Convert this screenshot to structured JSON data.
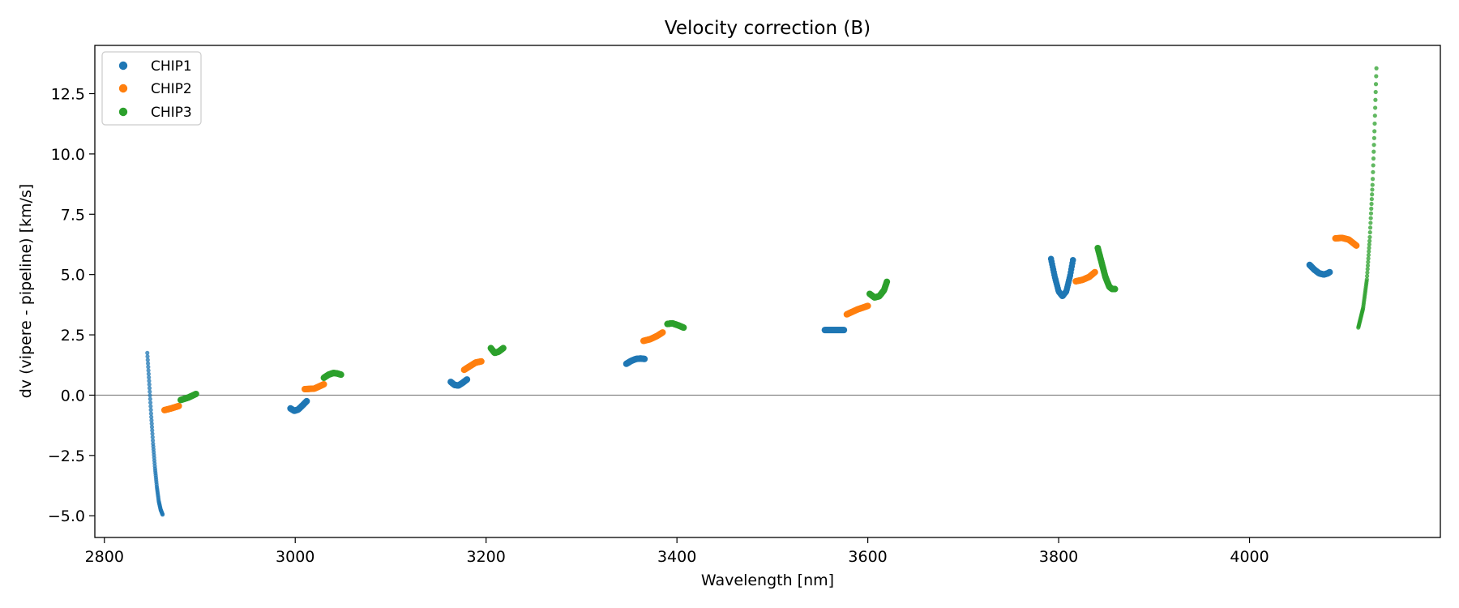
{
  "chart_data": {
    "type": "scatter",
    "title": "Velocity correction (B)",
    "xlabel": "Wavelength [nm]",
    "ylabel": "dv (vipere - pipeline) [km/s]",
    "xlim": [
      2790,
      4200
    ],
    "ylim": [
      -5.9,
      14.5
    ],
    "xticks": [
      2800,
      3000,
      3200,
      3400,
      3600,
      3800,
      4000
    ],
    "xtick_labels": [
      "2800",
      "3000",
      "3200",
      "3400",
      "3600",
      "3800",
      "4000"
    ],
    "yticks": [
      -5.0,
      -2.5,
      0.0,
      2.5,
      5.0,
      7.5,
      10.0,
      12.5
    ],
    "ytick_labels": [
      "−5.0",
      "−2.5",
      "0.0",
      "2.5",
      "5.0",
      "7.5",
      "10.0",
      "12.5"
    ],
    "hline_y": 0,
    "legend_position": "top-left",
    "series": [
      {
        "name": "CHIP1",
        "color": "#1f77b4",
        "segments": [
          {
            "x_start": 2845,
            "x_end": 2861,
            "points": [
              [
                2845,
                1.75
              ],
              [
                2847,
                0.5
              ],
              [
                2849,
                -0.8
              ],
              [
                2851,
                -2.0
              ],
              [
                2853,
                -3.0
              ],
              [
                2855,
                -3.8
              ],
              [
                2857,
                -4.4
              ],
              [
                2859,
                -4.75
              ],
              [
                2861,
                -4.95
              ]
            ],
            "n": 70,
            "size": 2.6
          },
          {
            "x_start": 2995,
            "x_end": 3012,
            "points": [
              [
                2995,
                -0.55
              ],
              [
                2999,
                -0.65
              ],
              [
                3003,
                -0.6
              ],
              [
                3007,
                -0.45
              ],
              [
                3012,
                -0.25
              ]
            ],
            "n": 30,
            "size": 4.0
          },
          {
            "x_start": 3163,
            "x_end": 3180,
            "points": [
              [
                3163,
                0.55
              ],
              [
                3167,
                0.42
              ],
              [
                3171,
                0.4
              ],
              [
                3175,
                0.5
              ],
              [
                3180,
                0.65
              ]
            ],
            "n": 30,
            "size": 4.0
          },
          {
            "x_start": 3347,
            "x_end": 3366,
            "points": [
              [
                3347,
                1.3
              ],
              [
                3352,
                1.42
              ],
              [
                3357,
                1.5
              ],
              [
                3362,
                1.52
              ],
              [
                3366,
                1.5
              ]
            ],
            "n": 30,
            "size": 4.0
          },
          {
            "x_start": 3555,
            "x_end": 3575,
            "points": [
              [
                3555,
                2.7
              ],
              [
                3575,
                2.7
              ]
            ],
            "n": 30,
            "size": 4.0
          },
          {
            "x_start": 3792,
            "x_end": 3815,
            "points": [
              [
                3792,
                5.65
              ],
              [
                3796,
                4.9
              ],
              [
                3800,
                4.3
              ],
              [
                3804,
                4.1
              ],
              [
                3808,
                4.3
              ],
              [
                3812,
                4.95
              ],
              [
                3815,
                5.6
              ]
            ],
            "n": 40,
            "size": 3.8
          },
          {
            "x_start": 4063,
            "x_end": 4084,
            "points": [
              [
                4063,
                5.4
              ],
              [
                4068,
                5.2
              ],
              [
                4073,
                5.05
              ],
              [
                4078,
                5.0
              ],
              [
                4082,
                5.05
              ],
              [
                4084,
                5.1
              ]
            ],
            "n": 30,
            "size": 4.0
          }
        ]
      },
      {
        "name": "CHIP2",
        "color": "#ff7f0e",
        "segments": [
          {
            "x_start": 2863,
            "x_end": 2878,
            "points": [
              [
                2863,
                -0.62
              ],
              [
                2870,
                -0.55
              ],
              [
                2878,
                -0.45
              ]
            ],
            "n": 25,
            "size": 4.0
          },
          {
            "x_start": 3010,
            "x_end": 3030,
            "points": [
              [
                3010,
                0.25
              ],
              [
                3020,
                0.27
              ],
              [
                3030,
                0.45
              ]
            ],
            "n": 30,
            "size": 4.0
          },
          {
            "x_start": 3177,
            "x_end": 3195,
            "points": [
              [
                3177,
                1.05
              ],
              [
                3183,
                1.2
              ],
              [
                3189,
                1.35
              ],
              [
                3195,
                1.4
              ]
            ],
            "n": 30,
            "size": 4.0
          },
          {
            "x_start": 3365,
            "x_end": 3385,
            "points": [
              [
                3365,
                2.25
              ],
              [
                3372,
                2.32
              ],
              [
                3379,
                2.45
              ],
              [
                3385,
                2.6
              ]
            ],
            "n": 30,
            "size": 4.0
          },
          {
            "x_start": 3578,
            "x_end": 3600,
            "points": [
              [
                3578,
                3.35
              ],
              [
                3589,
                3.55
              ],
              [
                3600,
                3.7
              ]
            ],
            "n": 30,
            "size": 4.0
          },
          {
            "x_start": 3818,
            "x_end": 3838,
            "points": [
              [
                3818,
                4.72
              ],
              [
                3825,
                4.78
              ],
              [
                3832,
                4.9
              ],
              [
                3838,
                5.1
              ]
            ],
            "n": 30,
            "size": 4.0
          },
          {
            "x_start": 4090,
            "x_end": 4112,
            "points": [
              [
                4090,
                6.5
              ],
              [
                4097,
                6.52
              ],
              [
                4104,
                6.45
              ],
              [
                4112,
                6.2
              ]
            ],
            "n": 30,
            "size": 4.0
          }
        ]
      },
      {
        "name": "CHIP3",
        "color": "#2ca02c",
        "segments": [
          {
            "x_start": 2880,
            "x_end": 2896,
            "points": [
              [
                2880,
                -0.2
              ],
              [
                2888,
                -0.1
              ],
              [
                2896,
                0.05
              ]
            ],
            "n": 25,
            "size": 4.0
          },
          {
            "x_start": 3030,
            "x_end": 3048,
            "points": [
              [
                3030,
                0.72
              ],
              [
                3035,
                0.85
              ],
              [
                3040,
                0.92
              ],
              [
                3044,
                0.9
              ],
              [
                3048,
                0.85
              ]
            ],
            "n": 30,
            "size": 4.0
          },
          {
            "x_start": 3205,
            "x_end": 3218,
            "points": [
              [
                3205,
                1.95
              ],
              [
                3209,
                1.75
              ],
              [
                3213,
                1.8
              ],
              [
                3218,
                1.95
              ]
            ],
            "n": 25,
            "size": 4.0
          },
          {
            "x_start": 3390,
            "x_end": 3407,
            "points": [
              [
                3390,
                2.95
              ],
              [
                3395,
                2.98
              ],
              [
                3401,
                2.9
              ],
              [
                3407,
                2.8
              ]
            ],
            "n": 30,
            "size": 4.0
          },
          {
            "x_start": 3602,
            "x_end": 3620,
            "points": [
              [
                3602,
                4.2
              ],
              [
                3607,
                4.05
              ],
              [
                3612,
                4.1
              ],
              [
                3617,
                4.35
              ],
              [
                3620,
                4.7
              ]
            ],
            "n": 30,
            "size": 4.0
          },
          {
            "x_start": 3841,
            "x_end": 3859,
            "points": [
              [
                3841,
                6.1
              ],
              [
                3845,
                5.5
              ],
              [
                3849,
                4.9
              ],
              [
                3853,
                4.5
              ],
              [
                3856,
                4.4
              ],
              [
                3859,
                4.4
              ]
            ],
            "n": 35,
            "size": 4.0
          },
          {
            "x_start": 4114,
            "x_end": 4133,
            "points": [
              [
                4114,
                2.8
              ],
              [
                4119,
                3.6
              ],
              [
                4123,
                4.8
              ],
              [
                4126,
                6.5
              ],
              [
                4129,
                8.8
              ],
              [
                4131,
                11.0
              ],
              [
                4133,
                13.55
              ]
            ],
            "n": 75,
            "size": 2.6
          }
        ]
      }
    ]
  }
}
